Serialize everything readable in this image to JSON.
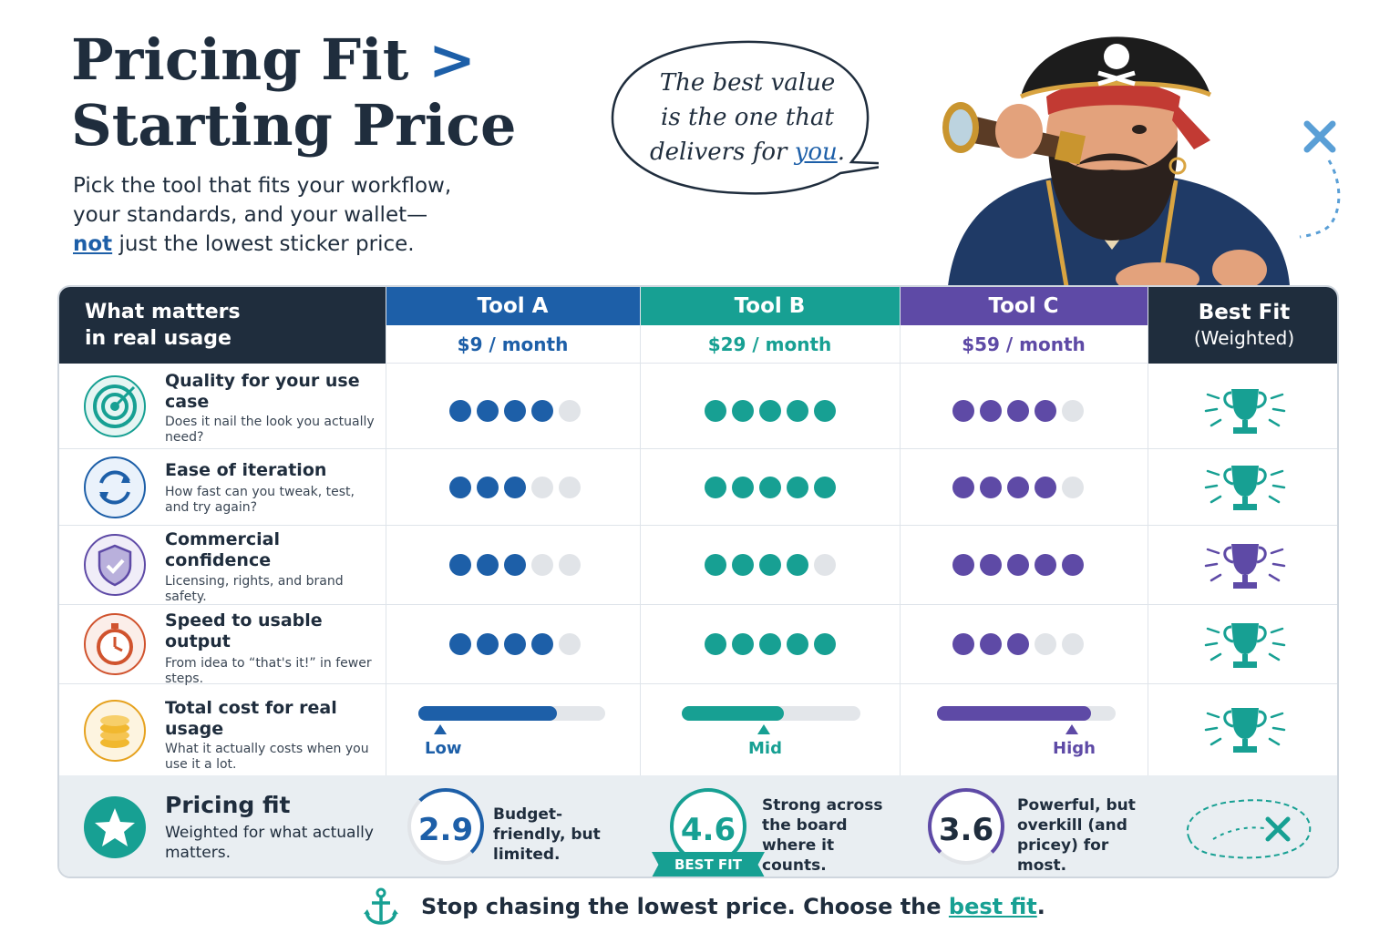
{
  "headline": {
    "line1": "Pricing Fit",
    "arrow": ">",
    "line2": "Starting Price"
  },
  "subtitle": {
    "part1": "Pick the tool that fits your workflow, your standards, and your wallet—",
    "emphasis": "not",
    "part2": " just the lowest sticker price."
  },
  "speech_bubble": {
    "line1": "The best value",
    "line2": "is the one that",
    "line3_pre": "delivers for ",
    "line3_em": "you",
    "line3_post": "."
  },
  "table": {
    "header_left": {
      "line1": "What matters",
      "line2": "in real usage"
    },
    "tools": [
      {
        "name": "Tool A",
        "price": "$9 / month",
        "color": "#1d5fa8"
      },
      {
        "name": "Tool B",
        "price": "$29 / month",
        "color": "#17a093"
      },
      {
        "name": "Tool C",
        "price": "$59 / month",
        "color": "#5e4aa6"
      }
    ],
    "best_fit_header": {
      "line1": "Best Fit",
      "line2": "(Weighted)"
    },
    "criteria": [
      {
        "title": "Quality for your use case",
        "desc": "Does it nail the look you actually need?",
        "icon": "target-icon",
        "scores": [
          4,
          5,
          4
        ],
        "winner": "Tool B"
      },
      {
        "title": "Ease of iteration",
        "desc": "How fast can you tweak, test, and try again?",
        "icon": "refresh-icon",
        "scores": [
          3,
          5,
          4
        ],
        "winner": "Tool B"
      },
      {
        "title": "Commercial confidence",
        "desc": "Licensing, rights, and brand safety.",
        "icon": "shield-icon",
        "scores": [
          3,
          4,
          5
        ],
        "winner": "Tool C"
      },
      {
        "title": "Speed to usable output",
        "desc": "From idea to “that's it!” in fewer steps.",
        "icon": "stopwatch-icon",
        "scores": [
          4,
          5,
          3
        ],
        "winner": "Tool B"
      }
    ],
    "cost_row": {
      "title": "Total cost for real usage",
      "desc": "What it actually costs when you use it a lot.",
      "icon": "coins-icon",
      "levels": [
        {
          "label": "Low",
          "fill": 0.74
        },
        {
          "label": "Mid",
          "fill": 0.57
        },
        {
          "label": "High",
          "fill": 0.86
        }
      ],
      "winner": "Tool B"
    },
    "fit_row": {
      "title": "Pricing fit",
      "desc": "Weighted for what actually matters.",
      "icon": "star-icon",
      "scores": [
        {
          "value": "2.9",
          "text": "Budget-friendly, but limited."
        },
        {
          "value": "4.6",
          "text": "Strong across the board where it counts."
        },
        {
          "value": "3.6",
          "text": "Powerful, but overkill (and pricey) for most."
        }
      ],
      "badge": "BEST FIT"
    }
  },
  "footer": {
    "icon": "anchor-icon",
    "text_pre": "Stop chasing the lowest price. Choose the ",
    "text_em": "best fit",
    "text_post": "."
  }
}
